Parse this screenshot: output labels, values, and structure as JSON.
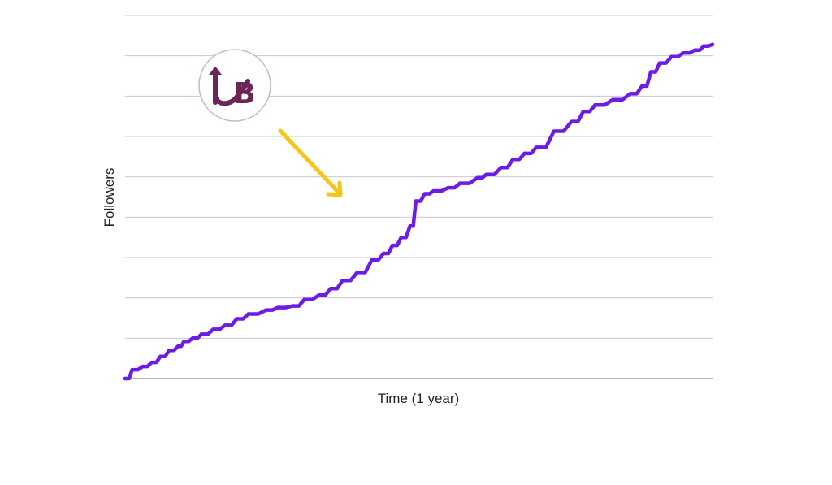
{
  "chart_data": {
    "type": "line",
    "title": "",
    "xlabel": "Time (1 year)",
    "ylabel": "Followers",
    "xlim": [
      0,
      100
    ],
    "ylim": [
      0,
      9
    ],
    "grid": true,
    "gridlines": 9,
    "series": [
      {
        "color": "#6c1ce6",
        "x": [
          0,
          1.2,
          3,
          4.5,
          6,
          7.5,
          9,
          10,
          11.5,
          13,
          15,
          17,
          19,
          21,
          24,
          26,
          28.5,
          30.5,
          33,
          35,
          37,
          39.5,
          42,
          44,
          45.5,
          47,
          48.5,
          49.5,
          51,
          52.5,
          55,
          57,
          60,
          61.5,
          64,
          66,
          68,
          70,
          73,
          76,
          78,
          80,
          83,
          86,
          88,
          89.5,
          91,
          93,
          95,
          97,
          98.5,
          100
        ],
        "y": [
          0,
          0.22,
          0.3,
          0.4,
          0.55,
          0.7,
          0.8,
          0.92,
          1.0,
          1.1,
          1.22,
          1.32,
          1.48,
          1.6,
          1.7,
          1.76,
          1.8,
          1.96,
          2.07,
          2.23,
          2.43,
          2.63,
          2.94,
          3.1,
          3.3,
          3.5,
          3.78,
          4.4,
          4.58,
          4.65,
          4.73,
          4.84,
          4.98,
          5.06,
          5.23,
          5.43,
          5.58,
          5.73,
          6.13,
          6.37,
          6.62,
          6.78,
          6.91,
          7.06,
          7.25,
          7.6,
          7.82,
          7.98,
          8.07,
          8.14,
          8.24,
          8.28
        ]
      }
    ]
  },
  "annotation": {
    "logo": {
      "text": "UB",
      "brand_color": "#6b2656",
      "ring_color": "#cbb4c6"
    },
    "arrow": {
      "color": "#f5c518",
      "points_to_x": 37.5
    }
  }
}
